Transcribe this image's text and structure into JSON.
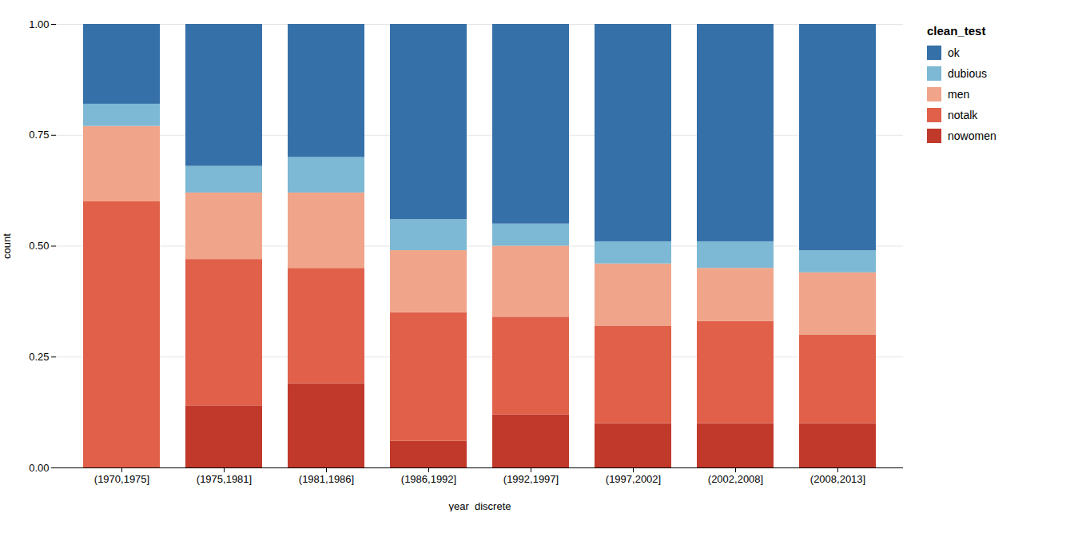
{
  "chart_data": {
    "type": "bar",
    "stacked": true,
    "categories": [
      "(1970,1975]",
      "(1975,1981]",
      "(1981,1986]",
      "(1986,1992]",
      "(1992,1997]",
      "(1997,2002]",
      "(2002,2008]",
      "(2008,2013]"
    ],
    "series": [
      {
        "name": "nowomen",
        "color": "#C1392B",
        "values": [
          0.0,
          0.14,
          0.19,
          0.06,
          0.12,
          0.1,
          0.1,
          0.1
        ]
      },
      {
        "name": "notalk",
        "color": "#E0604A",
        "values": [
          0.6,
          0.33,
          0.26,
          0.29,
          0.22,
          0.22,
          0.23,
          0.2
        ]
      },
      {
        "name": "men",
        "color": "#F0A58A",
        "values": [
          0.17,
          0.15,
          0.17,
          0.14,
          0.16,
          0.14,
          0.12,
          0.14
        ]
      },
      {
        "name": "dubious",
        "color": "#7DB8D4",
        "values": [
          0.05,
          0.06,
          0.08,
          0.07,
          0.05,
          0.05,
          0.06,
          0.05
        ]
      },
      {
        "name": "ok",
        "color": "#3570A8",
        "values": [
          0.18,
          0.32,
          0.3,
          0.44,
          0.45,
          0.49,
          0.49,
          0.51
        ]
      }
    ],
    "xlabel": "year_discrete",
    "ylabel": "count",
    "ylim": [
      0,
      1
    ],
    "yticks": [
      {
        "value": 0,
        "label": "0.00"
      },
      {
        "value": 0.25,
        "label": "0.25"
      },
      {
        "value": 0.5,
        "label": "0.50"
      },
      {
        "value": 0.75,
        "label": "0.75"
      },
      {
        "value": 1,
        "label": "1.00"
      }
    ],
    "grid": true,
    "legend": "right",
    "legend_title": "clean_test"
  }
}
